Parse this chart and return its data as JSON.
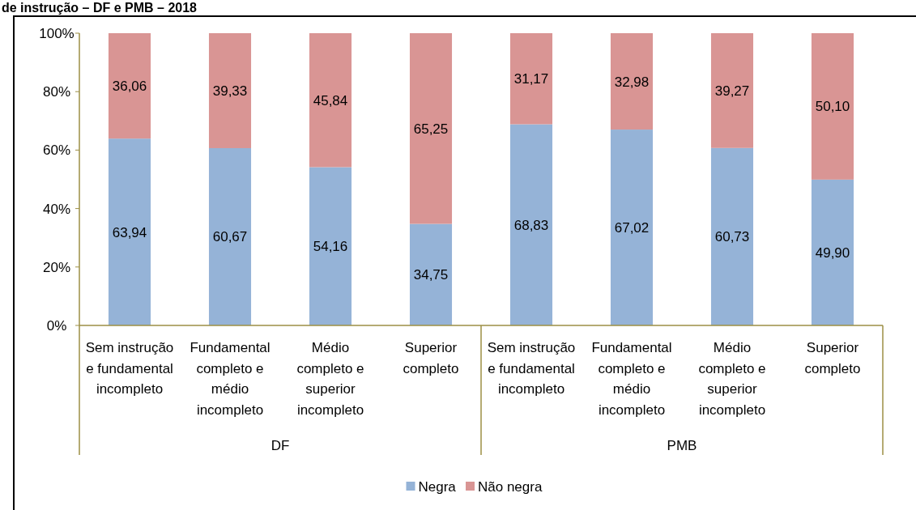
{
  "chart_data": {
    "type": "bar",
    "stacked": true,
    "title": "de instrução – DF e PMB – 2018",
    "categories": [
      "Sem instrução\ne fundamental\nincompleto",
      "Fundamental\ncompleto e\nmédio\nincompleto",
      "Médio\ncompleto e\nsuperior\nincompleto",
      "Superior\ncompleto",
      "Sem instrução\ne fundamental\nincompleto",
      "Fundamental\ncompleto e\nmédio\nincompleto",
      "Médio\ncompleto e\nsuperior\nincompleto",
      "Superior\ncompleto"
    ],
    "annotations": [
      "DF",
      "PMB"
    ],
    "series": [
      {
        "name": "Negra",
        "color": "#95b3d7",
        "values": [
          63.94,
          60.67,
          54.16,
          34.75,
          68.83,
          67.02,
          60.73,
          49.9
        ],
        "value_labels": [
          "63,94",
          "60,67",
          "54,16",
          "34,75",
          "68,83",
          "67,02",
          "60,73",
          "49,90"
        ]
      },
      {
        "name": "Não negra",
        "color": "#d99594",
        "values": [
          36.06,
          39.33,
          45.84,
          65.25,
          31.17,
          32.98,
          39.27,
          50.1
        ],
        "value_labels": [
          "36,06",
          "39,33",
          "45,84",
          "65,25",
          "31,17",
          "32,98",
          "39,27",
          "50,10"
        ]
      }
    ],
    "ylim": [
      0,
      100
    ],
    "yticks": [
      {
        "value": 0,
        "label": "0%"
      },
      {
        "value": 20,
        "label": "20%"
      },
      {
        "value": 40,
        "label": "40%"
      },
      {
        "value": 60,
        "label": "60%"
      },
      {
        "value": 80,
        "label": "80%"
      },
      {
        "value": 100,
        "label": "100%"
      }
    ],
    "legend": "bottom"
  }
}
